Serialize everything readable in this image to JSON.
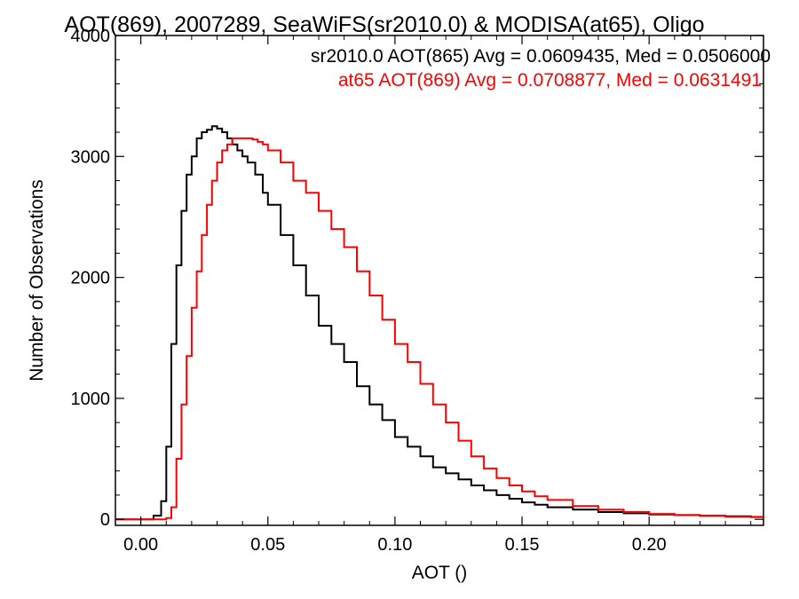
{
  "chart_data": {
    "type": "line",
    "title": "AOT(869), 2007289, SeaWiFS(sr2010.0) & MODISA(at65), Oligo",
    "xlabel": "AOT ()",
    "ylabel": "Number of Observations",
    "xlim": [
      -0.01,
      0.245
    ],
    "ylim": [
      -50,
      4000
    ],
    "xticks": [
      0.0,
      0.05,
      0.1,
      0.15,
      0.2
    ],
    "xtick_labels": [
      "0.00",
      "0.05",
      "0.10",
      "0.15",
      "0.20"
    ],
    "yticks": [
      0,
      1000,
      2000,
      3000,
      4000
    ],
    "ytick_labels": [
      "0",
      "1000",
      "2000",
      "3000",
      "4000"
    ],
    "grid": false,
    "step": true,
    "series": [
      {
        "name": "sr2010.0",
        "label": "sr2010.0 AOT(865) Avg = 0.0609435, Med = 0.0506000",
        "color": "#000000",
        "x": [
          -0.01,
          0.0,
          0.005,
          0.008,
          0.01,
          0.012,
          0.014,
          0.016,
          0.018,
          0.02,
          0.022,
          0.024,
          0.026,
          0.028,
          0.03,
          0.032,
          0.034,
          0.036,
          0.038,
          0.04,
          0.042,
          0.045,
          0.048,
          0.05,
          0.055,
          0.06,
          0.065,
          0.07,
          0.075,
          0.08,
          0.085,
          0.09,
          0.095,
          0.1,
          0.105,
          0.11,
          0.115,
          0.12,
          0.125,
          0.13,
          0.135,
          0.14,
          0.145,
          0.15,
          0.155,
          0.16,
          0.17,
          0.18,
          0.19,
          0.2,
          0.21,
          0.22,
          0.23,
          0.24,
          0.245
        ],
        "y": [
          0,
          0,
          30,
          150,
          600,
          1450,
          2100,
          2550,
          2850,
          3000,
          3150,
          3200,
          3220,
          3250,
          3230,
          3200,
          3150,
          3100,
          3050,
          3000,
          2950,
          2850,
          2700,
          2600,
          2350,
          2100,
          1850,
          1600,
          1450,
          1300,
          1100,
          950,
          820,
          680,
          600,
          520,
          430,
          380,
          330,
          280,
          240,
          200,
          170,
          140,
          120,
          100,
          80,
          60,
          50,
          40,
          35,
          30,
          25,
          20,
          18
        ]
      },
      {
        "name": "at65",
        "label": "at65 AOT(869) Avg = 0.0708877, Med = 0.0631491",
        "color": "#ff0000",
        "x": [
          -0.01,
          0.0,
          0.006,
          0.01,
          0.012,
          0.014,
          0.016,
          0.018,
          0.02,
          0.022,
          0.024,
          0.026,
          0.028,
          0.03,
          0.032,
          0.034,
          0.036,
          0.038,
          0.04,
          0.042,
          0.044,
          0.046,
          0.048,
          0.05,
          0.055,
          0.06,
          0.065,
          0.07,
          0.075,
          0.08,
          0.085,
          0.09,
          0.095,
          0.1,
          0.105,
          0.11,
          0.115,
          0.12,
          0.125,
          0.13,
          0.135,
          0.14,
          0.145,
          0.15,
          0.155,
          0.16,
          0.17,
          0.18,
          0.19,
          0.2,
          0.21,
          0.22,
          0.23,
          0.24,
          0.245
        ],
        "y": [
          0,
          0,
          0,
          10,
          100,
          500,
          950,
          1350,
          1750,
          2050,
          2350,
          2600,
          2800,
          2950,
          3050,
          3100,
          3150,
          3150,
          3150,
          3150,
          3140,
          3120,
          3100,
          3050,
          2950,
          2800,
          2700,
          2550,
          2400,
          2250,
          2050,
          1850,
          1650,
          1450,
          1300,
          1120,
          950,
          800,
          650,
          520,
          420,
          340,
          280,
          230,
          190,
          160,
          110,
          80,
          60,
          45,
          35,
          28,
          22,
          18,
          15
        ]
      }
    ]
  }
}
